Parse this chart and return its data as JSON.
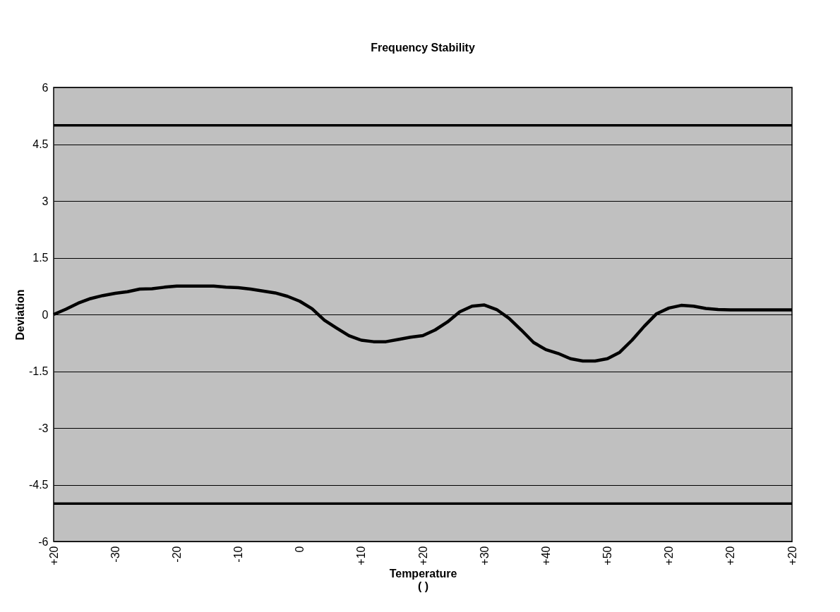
{
  "chart_data": {
    "type": "line",
    "title": "Frequency Stability",
    "xlabel": "Temperature\n(  )",
    "ylabel": "Deviation",
    "categories": [
      "+20",
      null,
      null,
      null,
      null,
      "-30",
      null,
      null,
      null,
      null,
      "-20",
      null,
      null,
      null,
      null,
      "-10",
      null,
      null,
      null,
      null,
      "0",
      null,
      null,
      null,
      null,
      "+10",
      null,
      null,
      null,
      null,
      "+20",
      null,
      null,
      null,
      null,
      "+30",
      null,
      null,
      null,
      null,
      "+40",
      null,
      null,
      null,
      null,
      "+50",
      null,
      null,
      null,
      null,
      "+20",
      null,
      null,
      null,
      null,
      "+20",
      null,
      null,
      null,
      null,
      "+20"
    ],
    "series": [
      {
        "color": "#000000",
        "values": [
          0,
          0.14,
          0.3,
          0.42,
          0.5,
          0.56,
          0.6,
          0.67,
          0.68,
          0.72,
          0.75,
          0.75,
          0.75,
          0.75,
          0.72,
          0.71,
          0.67,
          0.62,
          0.57,
          0.48,
          0.35,
          0.15,
          -0.15,
          -0.36,
          -0.56,
          -0.68,
          -0.72,
          -0.72,
          -0.66,
          -0.6,
          -0.56,
          -0.41,
          -0.2,
          0.07,
          0.22,
          0.25,
          0.13,
          -0.1,
          -0.41,
          -0.74,
          -0.93,
          -1.03,
          -1.17,
          -1.23,
          -1.23,
          -1.17,
          -1.0,
          -0.68,
          -0.31,
          0.02,
          0.17,
          0.24,
          0.22,
          0.16,
          0.13,
          0.12,
          0.12,
          0.12,
          0.12,
          0.12,
          0.12
        ]
      }
    ],
    "ylim": [
      -6,
      6
    ],
    "yticks": [
      -6,
      -4.5,
      -3,
      -1.5,
      0,
      1.5,
      3,
      4.5,
      6
    ],
    "ref_lines": [
      {
        "axis": "y",
        "value": 5,
        "color": "#000000"
      },
      {
        "axis": "y",
        "value": -5,
        "color": "#000000"
      }
    ],
    "grid": "y",
    "marker": "none",
    "line_style": "solid"
  }
}
